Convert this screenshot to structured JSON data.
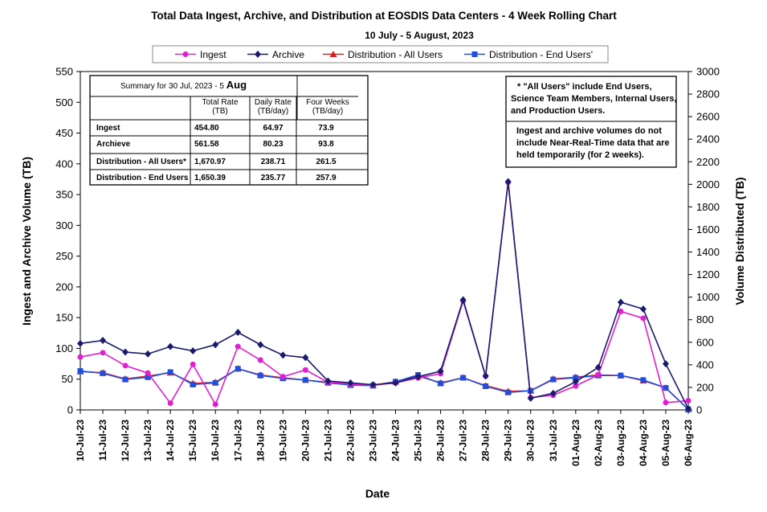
{
  "chart_data": {
    "type": "line",
    "title": "Total Data Ingest, Archive, and  Distribution at EOSDIS Data Centers - 4 Week Rolling Chart",
    "subtitle": "10 July   -  5  August,  2023",
    "xlabel": "Date",
    "ylabel_left": "Ingest and Archive Volume (TB)",
    "ylabel_right": "Volume Distributed (TB)",
    "ylim_left": [
      0,
      550
    ],
    "ylim_right": [
      0,
      3000
    ],
    "yticks_left": [
      "0",
      "50",
      "100",
      "150",
      "200",
      "250",
      "300",
      "350",
      "400",
      "450",
      "500",
      "550"
    ],
    "yticks_right": [
      "0",
      "200",
      "400",
      "600",
      "800",
      "1000",
      "1200",
      "1400",
      "1600",
      "1800",
      "2000",
      "2200",
      "2400",
      "2600",
      "2800",
      "3000"
    ],
    "categories": [
      "10-Jul-23",
      "11-Jul-23",
      "12-Jul-23",
      "13-Jul-23",
      "14-Jul-23",
      "15-Jul-23",
      "16-Jul-23",
      "17-Jul-23",
      "18-Jul-23",
      "19-Jul-23",
      "20-Jul-23",
      "21-Jul-23",
      "22-Jul-23",
      "23-Jul-23",
      "24-Jul-23",
      "25-Jul-23",
      "26-Jul-23",
      "27-Jul-23",
      "28-Jul-23",
      "29-Jul-23",
      "30-Jul-23",
      "31-Jul-23",
      "01-Aug-23",
      "02-Aug-23",
      "03-Aug-23",
      "04-Aug-23",
      "05-Aug-23",
      "06-Aug-23"
    ],
    "series": [
      {
        "name": "Ingest",
        "axis": "left",
        "color": "#E020D0",
        "marker": "circle",
        "values": [
          86,
          93,
          72,
          60,
          11,
          74,
          9,
          103,
          81,
          54,
          65,
          45,
          42,
          40,
          44,
          52,
          59,
          177,
          55,
          370,
          20,
          24,
          39,
          57,
          160,
          149,
          12,
          15
        ]
      },
      {
        "name": "Archive",
        "axis": "left",
        "color": "#1A1A6E",
        "marker": "diamond",
        "values": [
          108,
          113,
          94,
          91,
          103,
          96,
          106,
          126,
          106,
          89,
          85,
          47,
          44,
          41,
          44,
          54,
          63,
          179,
          55,
          371,
          19,
          27,
          46,
          69,
          175,
          164,
          75,
          2
        ]
      },
      {
        "name": "Distribution - All Users",
        "axis": "right",
        "color": "#E02020",
        "marker": "triangle",
        "values": [
          340,
          330,
          275,
          300,
          330,
          235,
          245,
          365,
          310,
          285,
          265,
          245,
          225,
          220,
          250,
          300,
          240,
          285,
          215,
          165,
          170,
          275,
          290,
          310,
          305,
          260,
          195,
          5
        ]
      },
      {
        "name": "Distribution - End Users'",
        "axis": "right",
        "color": "#1F4FE0",
        "marker": "square",
        "values": [
          345,
          325,
          270,
          290,
          335,
          225,
          240,
          365,
          305,
          280,
          265,
          240,
          220,
          215,
          250,
          310,
          235,
          285,
          210,
          155,
          170,
          270,
          285,
          305,
          305,
          265,
          195,
          5
        ]
      }
    ],
    "legend_position": "top",
    "summary_table": {
      "heading_prefix": "Summary  for  30 Jul, 2023 - 5",
      "heading_emph": "Aug",
      "columns": [
        "",
        "Total  Rate (TB)",
        "Daily Rate (TB/day)",
        "Four Weeks (TB/day)"
      ],
      "col1_lines": [
        "Total  Rate",
        "(TB)"
      ],
      "col2_lines": [
        "Daily Rate",
        "(TB/day)"
      ],
      "col3_lines": [
        "Four Weeks",
        "(TB/day)"
      ],
      "rows": [
        [
          "Ingest",
          "454.80",
          "64.97",
          "73.9"
        ],
        [
          "Archieve",
          "561.58",
          "80.23",
          "93.8"
        ],
        [
          "Distribution - All Users*",
          "1,670.97",
          "238.71",
          "261.5"
        ],
        [
          "Distribution - End Users",
          "1,650.39",
          "235.77",
          "257.9"
        ]
      ]
    },
    "notes": [
      [
        "* \"All Users\" include End Users,",
        "Science Team Members,  Internal Users,",
        "and Production Users."
      ],
      [
        "Ingest and archive volumes do not",
        "include Near-Real-Time data that are",
        "held temporarily (for 2 weeks)."
      ]
    ]
  }
}
